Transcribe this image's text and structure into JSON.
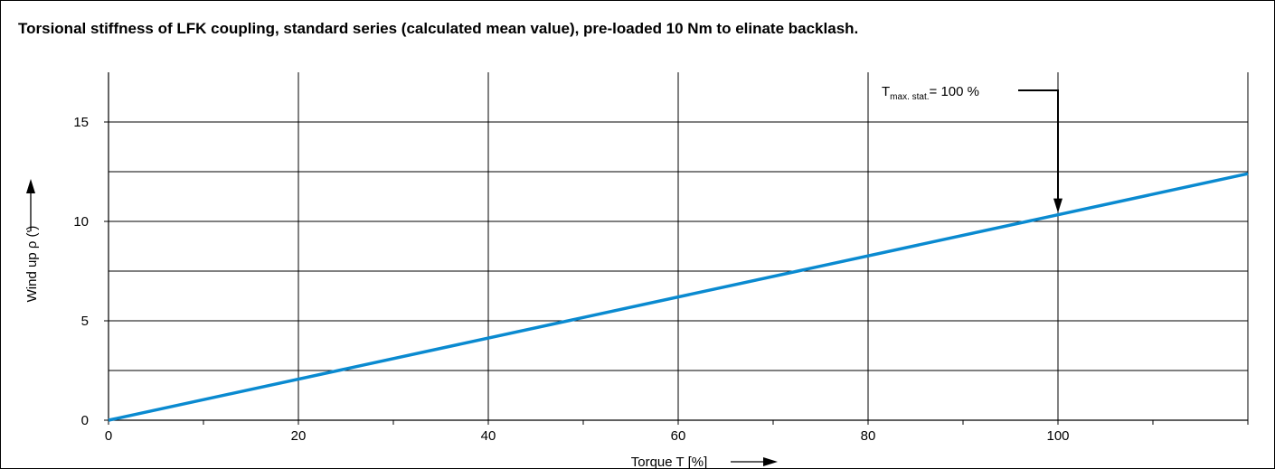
{
  "chart_data": {
    "type": "line",
    "title": "Torsional stiffness of LFK coupling, standard series (calculated mean value), pre-loaded 10 Nm to elinate backlash.",
    "xlabel": "Torque T [%]",
    "ylabel": "Wind up ρ (')",
    "xlim": [
      0,
      120
    ],
    "ylim": [
      0,
      17.5
    ],
    "xticks": [
      0,
      20,
      40,
      60,
      80,
      100
    ],
    "yticks": [
      0,
      5,
      10,
      15
    ],
    "xgrid": [
      0,
      20,
      40,
      60,
      80,
      100,
      120
    ],
    "ygrid": [
      2.5,
      5,
      7.5,
      10,
      12.5,
      15
    ],
    "grid": true,
    "series": [
      {
        "x": [
          0,
          120
        ],
        "y": [
          0,
          12.4
        ],
        "color": "#0A8AD0"
      }
    ],
    "annotation": {
      "main": "T",
      "subscript": "max. stat.",
      "suffix": "= 100 %",
      "x": 100
    }
  },
  "colors": {
    "line": "#0A8AD0",
    "grid": "#000000",
    "text": "#000000"
  }
}
